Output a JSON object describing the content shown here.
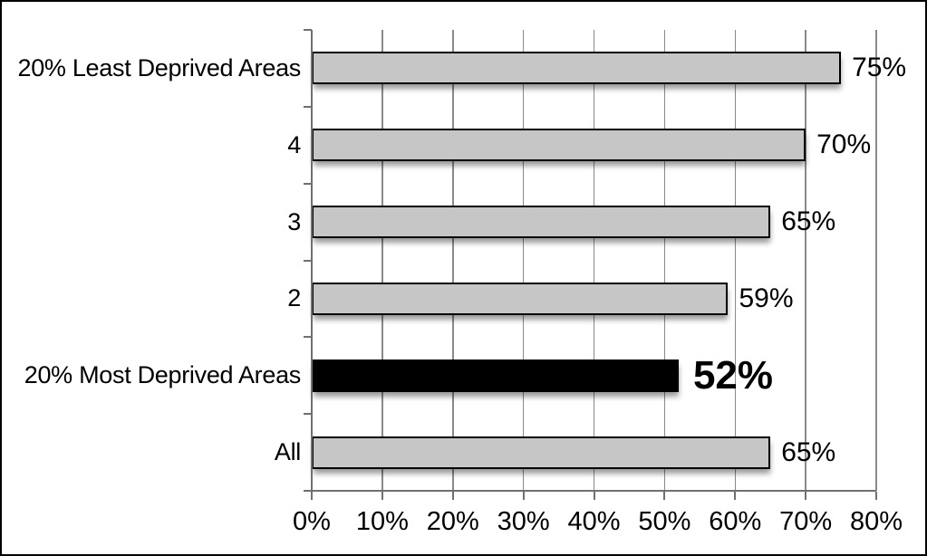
{
  "chart_data": {
    "type": "bar",
    "orientation": "horizontal",
    "title": "",
    "categories": [
      "20% Least Deprived Areas",
      "4",
      "3",
      "2",
      "20% Most Deprived Areas",
      "All"
    ],
    "values": [
      75,
      70,
      65,
      59,
      52,
      65
    ],
    "value_labels": [
      "75%",
      "70%",
      "65%",
      "59%",
      "52%",
      "65%"
    ],
    "emphasized_index": 4,
    "emphasized_category": "20% Most Deprived Areas",
    "xlim": [
      0,
      80
    ],
    "x_tick_step": 10,
    "x_tick_labels": [
      "0%",
      "10%",
      "20%",
      "30%",
      "40%",
      "50%",
      "60%",
      "70%",
      "80%"
    ],
    "grid": "vertical-only",
    "legend": "none",
    "colors": {
      "bar_fill": "#c6c6c6",
      "bar_border": "#000000",
      "emphasized_bar_fill": "#000000",
      "gridline": "#8a8a8a",
      "axis": "#707070",
      "frame_border": "#000000",
      "background": "#ffffff",
      "label_text": "#000000"
    }
  }
}
